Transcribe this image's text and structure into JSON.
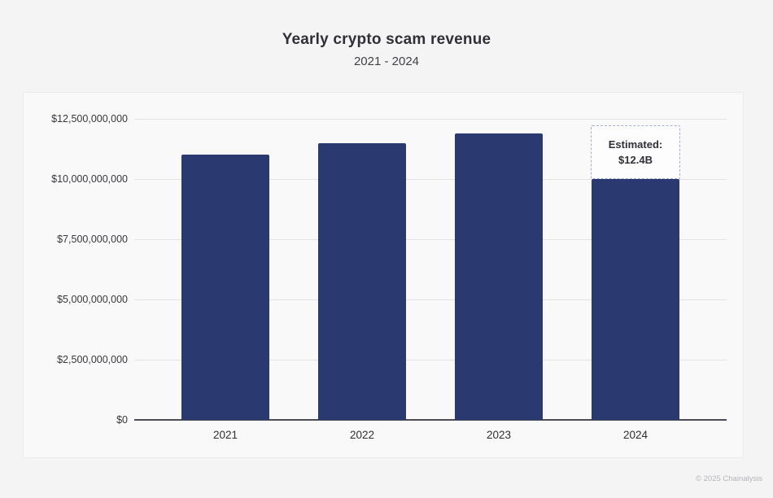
{
  "page": {
    "title": "Yearly crypto scam revenue",
    "subtitle": "2021 - 2024",
    "footer": "© 2025 Chainalysis"
  },
  "colors": {
    "bar": "#2a3a71",
    "page_background": "#f4f4f5",
    "card_background": "#f9f9fa",
    "gridline": "#e2e2e5",
    "axis_line": "#4d4d53",
    "annotation_border": "#a6aed0",
    "annotation_background": "#fdfdfe",
    "text_dark": "#303036",
    "footer_text": "#b5b5b9"
  },
  "chart_data": {
    "type": "bar",
    "title": "Yearly crypto scam revenue",
    "subtitle": "2021 - 2024",
    "categories": [
      "2021",
      "2022",
      "2023",
      "2024"
    ],
    "values": [
      11000000000,
      11500000000,
      11900000000,
      10000000000
    ],
    "unit": "USD",
    "xlabel": "",
    "ylabel": "",
    "ylim": [
      0,
      12500000000
    ],
    "ytick_interval": 2500000000,
    "ytick_labels": [
      "$0",
      "$2,500,000,000",
      "$5,000,000,000",
      "$7,500,000,000",
      "$10,000,000,000",
      "$12,500,000,000"
    ],
    "grid": true,
    "legend": "none",
    "annotation": {
      "target_category": "2024",
      "lines": [
        "Estimated:",
        "$12.4B"
      ]
    },
    "source_credit": "© 2025 Chainalysis"
  }
}
